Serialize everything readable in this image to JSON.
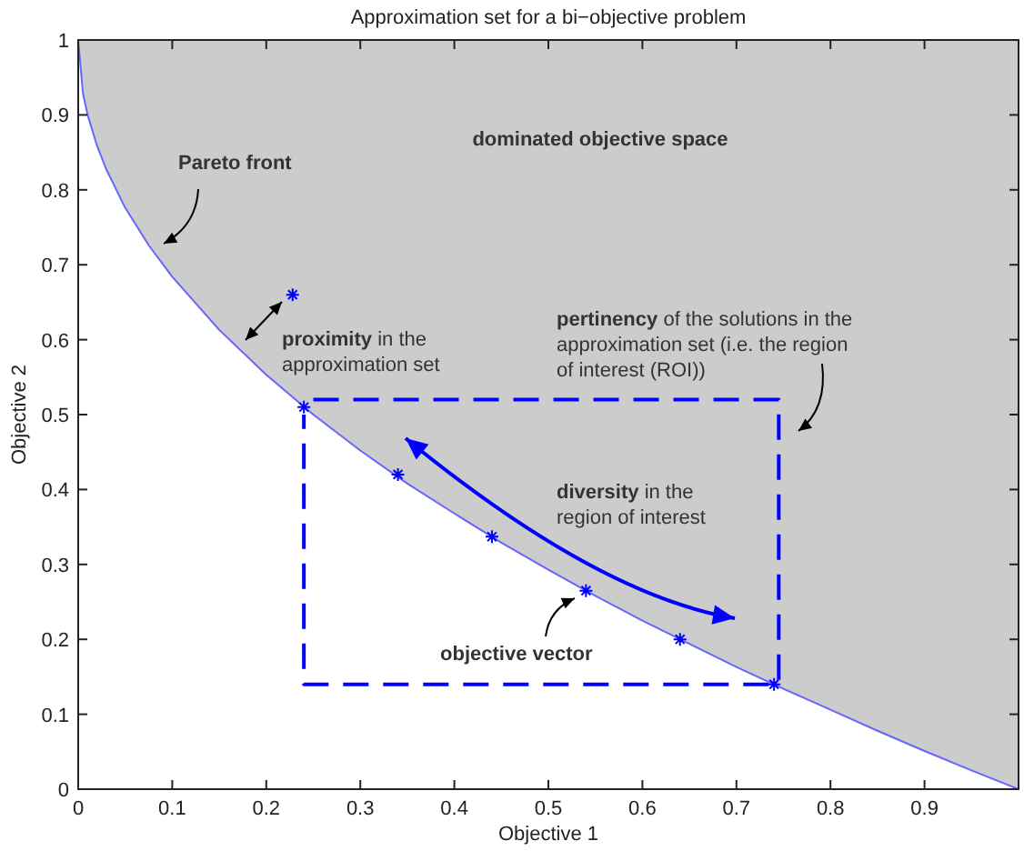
{
  "chart_data": {
    "type": "line",
    "title": "Approximation set for a bi−objective problem",
    "xlabel": "Objective 1",
    "ylabel": "Objective 2",
    "xlim": [
      0,
      1
    ],
    "ylim": [
      0,
      1
    ],
    "xticks": [
      0,
      0.1,
      0.2,
      0.3,
      0.4,
      0.5,
      0.6,
      0.7,
      0.8,
      0.9,
      {
        "value": 1,
        "label": null
      }
    ],
    "yticks": [
      0,
      0.1,
      0.2,
      0.3,
      0.4,
      0.5,
      0.6,
      0.7,
      0.8,
      0.9,
      1
    ],
    "grid": false,
    "series": [
      {
        "color": "#6666ff",
        "x": [
          0,
          0.005,
          0.01,
          0.02,
          0.03,
          0.05,
          0.075,
          0.1,
          0.15,
          0.2,
          0.25,
          0.3,
          0.35,
          0.4,
          0.45,
          0.5,
          0.55,
          0.6,
          0.65,
          0.7,
          0.75,
          0.8,
          0.85,
          0.9,
          0.95,
          1
        ],
        "values": [
          1,
          0.929,
          0.9,
          0.859,
          0.827,
          0.776,
          0.726,
          0.684,
          0.613,
          0.553,
          0.5,
          0.452,
          0.408,
          0.368,
          0.329,
          0.293,
          0.258,
          0.225,
          0.194,
          0.163,
          0.134,
          0.106,
          0.078,
          0.051,
          0.025,
          0
        ],
        "lower": [
          1,
          0.929,
          0.9,
          0.859,
          0.827,
          0.776,
          0.726,
          0.684,
          0.613,
          0.553,
          0.5,
          0.452,
          0.408,
          0.368,
          0.329,
          0.293,
          0.258,
          0.225,
          0.194,
          0.163,
          0.134,
          0.106,
          0.078,
          0.051,
          0.025,
          0
        ],
        "upper": [
          1,
          1,
          1,
          1,
          1,
          1,
          1,
          1,
          1,
          1,
          1,
          1,
          1,
          1,
          1,
          1,
          1,
          1,
          1,
          1,
          1,
          1,
          1,
          1,
          1,
          1
        ]
      },
      {
        "color": "#0000ff",
        "line_style": "dashed",
        "x": [
          0.25,
          0.745,
          0.745,
          0.24,
          0.24
        ],
        "values": [
          0.52,
          0.52,
          0.14,
          0.14,
          0.5
        ]
      },
      {
        "type": "scatter",
        "color": "#0000ff",
        "marker": "cross",
        "x": [
          0.228,
          0.24,
          0.34,
          0.44,
          0.54,
          0.64,
          0.74
        ],
        "values": [
          0.66,
          0.51,
          0.42,
          0.337,
          0.265,
          0.2,
          0.14
        ]
      }
    ],
    "annotations": [
      "dominated objective space",
      "Pareto front",
      "proximity in the approximation set",
      "pertinency of the solutions in the approximation set (i.e. the region of interest (ROI))",
      "diversity in the region of interest",
      "objective vector"
    ]
  }
}
